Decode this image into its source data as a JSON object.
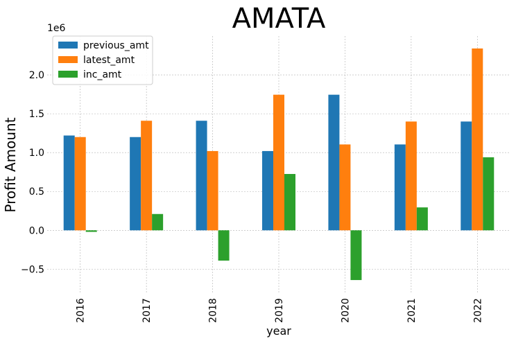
{
  "chart_data": {
    "type": "bar",
    "title": "AMATA",
    "xlabel": "year",
    "ylabel": "Profit Amount",
    "y_offset_label": "1e6",
    "categories": [
      "2016",
      "2017",
      "2018",
      "2019",
      "2020",
      "2021",
      "2022"
    ],
    "series": [
      {
        "name": "previous_amt",
        "color": "#1f77b4",
        "values": [
          1220000,
          1200000,
          1410000,
          1020000,
          1745000,
          1105000,
          1400000
        ]
      },
      {
        "name": "latest_amt",
        "color": "#ff7f0e",
        "values": [
          1200000,
          1410000,
          1020000,
          1745000,
          1105000,
          1400000,
          2340000
        ]
      },
      {
        "name": "inc_amt",
        "color": "#2ca02c",
        "values": [
          -20000,
          210000,
          -390000,
          725000,
          -640000,
          295000,
          940000
        ]
      }
    ],
    "ylim": [
      -800000,
      2500000
    ],
    "yticks": [
      -500000,
      0,
      500000,
      1000000,
      1500000,
      2000000
    ],
    "ytick_labels": [
      "−0.5",
      "0.0",
      "0.5",
      "1.0",
      "1.5",
      "2.0"
    ],
    "grid": true,
    "legend_position": "upper-left"
  }
}
